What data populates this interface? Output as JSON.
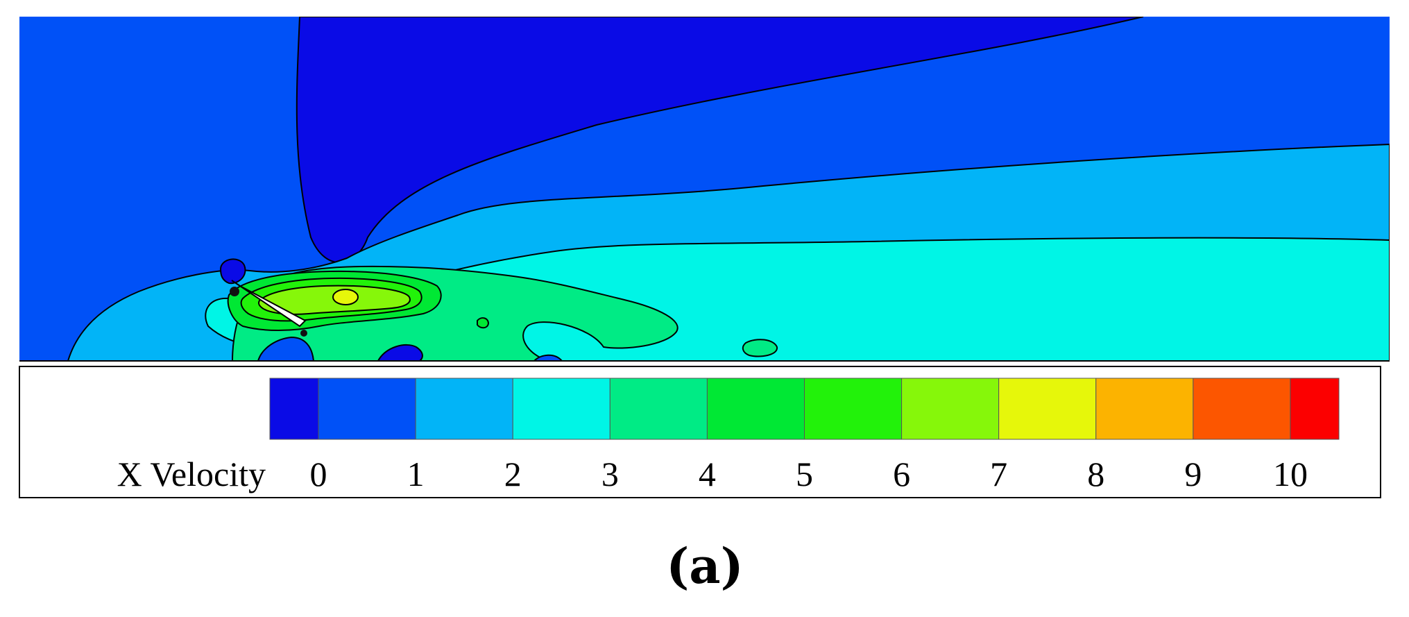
{
  "chart_data": {
    "type": "heatmap",
    "colorbar": {
      "label": "X Velocity",
      "ticks": [
        0,
        1,
        2,
        3,
        4,
        5,
        6,
        7,
        8,
        9,
        10
      ],
      "range": [
        -0.5,
        10.5
      ],
      "levels": [
        {
          "from": -0.5,
          "to": 0,
          "color": "#0a0be6"
        },
        {
          "from": 0,
          "to": 1,
          "color": "#0051f7"
        },
        {
          "from": 1,
          "to": 2,
          "color": "#02b4f7"
        },
        {
          "from": 2,
          "to": 3,
          "color": "#00f5e6"
        },
        {
          "from": 3,
          "to": 4,
          "color": "#00eb85"
        },
        {
          "from": 4,
          "to": 5,
          "color": "#00e834"
        },
        {
          "from": 5,
          "to": 6,
          "color": "#22f20a"
        },
        {
          "from": 6,
          "to": 7,
          "color": "#86f70a"
        },
        {
          "from": 7,
          "to": 8,
          "color": "#e6f70a"
        },
        {
          "from": 8,
          "to": 9,
          "color": "#fcb300"
        },
        {
          "from": 9,
          "to": 10,
          "color": "#fc5600"
        },
        {
          "from": 10,
          "to": 10.5,
          "color": "#fc0000"
        }
      ]
    }
  },
  "panel_label": "(a)"
}
